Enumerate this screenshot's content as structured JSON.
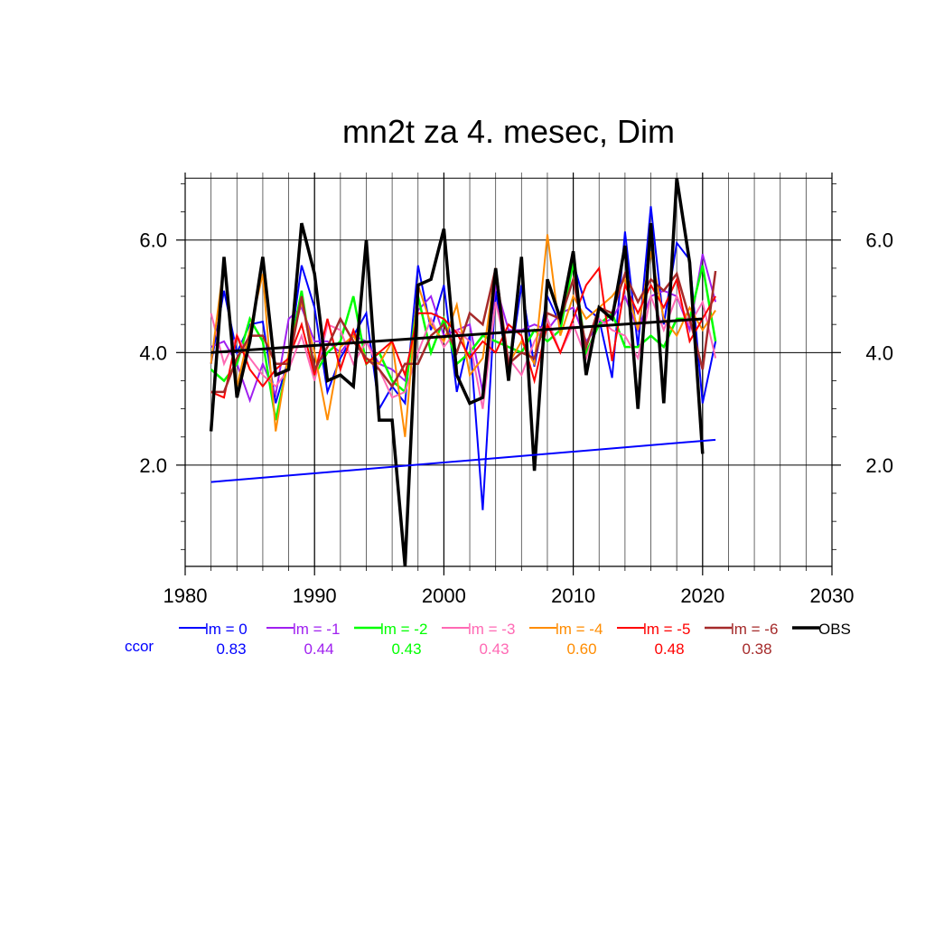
{
  "chart_data": {
    "type": "line",
    "title": "mn2t za 4. mesec, Dim",
    "xlabel": "",
    "ylabel": "",
    "xlim": [
      1980,
      2030
    ],
    "ylim": [
      0.2,
      7.2
    ],
    "x_ticks": [
      1980,
      1990,
      2000,
      2010,
      2020,
      2030
    ],
    "x_tick_labels": [
      "1980",
      "1990",
      "2000",
      "2010",
      "2020",
      "2030"
    ],
    "y_ticks": [
      2.0,
      4.0,
      6.0
    ],
    "y_tick_labels": [
      "2.0",
      "4.0",
      "6.0"
    ],
    "grid": true,
    "legend_placement": "bottom",
    "ccor_label": "ccor",
    "x": [
      1982,
      1983,
      1984,
      1985,
      1986,
      1987,
      1988,
      1989,
      1990,
      1991,
      1992,
      1993,
      1994,
      1995,
      1996,
      1997,
      1998,
      1999,
      2000,
      2001,
      2002,
      2003,
      2004,
      2005,
      2006,
      2007,
      2008,
      2009,
      2010,
      2011,
      2012,
      2013,
      2014,
      2015,
      2016,
      2017,
      2018,
      2019,
      2020,
      2021
    ],
    "series": [
      {
        "name": "lm = 0",
        "ccor": "0.83",
        "color": "#0000ff",
        "width": 2,
        "values": [
          3.8,
          5.1,
          4.0,
          4.5,
          4.55,
          3.1,
          3.9,
          5.55,
          4.8,
          3.3,
          3.9,
          4.3,
          4.7,
          3.0,
          3.4,
          3.1,
          5.55,
          4.4,
          5.2,
          3.3,
          4.3,
          1.2,
          5.1,
          3.6,
          5.2,
          3.75,
          5.0,
          4.5,
          5.6,
          4.8,
          4.6,
          3.55,
          6.15,
          4.1,
          6.6,
          4.5,
          5.95,
          5.65,
          3.1,
          4.2
        ]
      },
      {
        "name": "lm = -1",
        "ccor": "0.44",
        "color": "#a020f0",
        "width": 2,
        "values": [
          4.1,
          4.2,
          3.8,
          3.15,
          3.8,
          3.25,
          4.6,
          4.8,
          4.2,
          4.2,
          4.0,
          4.3,
          4.2,
          3.8,
          3.7,
          3.5,
          4.75,
          5.0,
          4.3,
          4.4,
          4.5,
          3.3,
          5.2,
          4.4,
          4.4,
          4.5,
          4.4,
          4.7,
          4.8,
          4.2,
          4.5,
          4.6,
          5.0,
          4.4,
          5.0,
          5.1,
          5.0,
          4.4,
          5.75,
          4.9
        ]
      },
      {
        "name": "lm = -2",
        "ccor": "0.43",
        "color": "#00ff00",
        "width": 2.5,
        "values": [
          3.7,
          3.5,
          3.8,
          4.6,
          4.2,
          2.8,
          3.9,
          5.1,
          3.6,
          4.0,
          4.2,
          5.0,
          3.8,
          4.0,
          3.5,
          3.3,
          5.0,
          4.0,
          4.6,
          3.8,
          4.0,
          4.3,
          4.2,
          4.1,
          4.0,
          4.4,
          4.2,
          4.4,
          5.6,
          4.0,
          4.5,
          4.7,
          4.1,
          4.1,
          4.3,
          4.1,
          4.6,
          4.6,
          5.55,
          4.2
        ]
      },
      {
        "name": "lm = -3",
        "ccor": "0.43",
        "color": "#ff69b4",
        "width": 2,
        "values": [
          4.7,
          3.8,
          4.3,
          3.9,
          3.6,
          3.4,
          3.7,
          4.3,
          3.5,
          4.5,
          4.4,
          3.8,
          4.2,
          3.7,
          3.2,
          3.3,
          4.0,
          4.6,
          4.1,
          4.4,
          4.2,
          3.0,
          4.9,
          3.9,
          3.6,
          4.2,
          4.6,
          4.0,
          4.5,
          3.9,
          4.6,
          4.4,
          4.3,
          3.9,
          5.0,
          4.4,
          5.0,
          4.5,
          4.9,
          3.9
        ]
      },
      {
        "name": "lm = -4",
        "ccor": "0.60",
        "color": "#ff8c00",
        "width": 2,
        "values": [
          3.8,
          5.6,
          3.4,
          4.4,
          5.4,
          2.6,
          4.0,
          4.9,
          4.0,
          2.8,
          4.1,
          4.3,
          3.9,
          3.8,
          4.2,
          2.5,
          5.2,
          4.5,
          4.2,
          4.85,
          3.6,
          3.9,
          5.5,
          3.8,
          4.2,
          3.8,
          6.1,
          4.3,
          5.0,
          4.6,
          4.8,
          5.0,
          5.3,
          4.4,
          5.8,
          4.6,
          4.3,
          4.8,
          4.4,
          4.75
        ]
      },
      {
        "name": "lm = -5",
        "ccor": "0.48",
        "color": "#ff0000",
        "width": 2,
        "values": [
          3.3,
          3.2,
          4.3,
          3.7,
          3.4,
          3.7,
          3.9,
          4.5,
          3.6,
          4.6,
          3.7,
          4.4,
          3.8,
          4.0,
          4.2,
          3.6,
          4.7,
          4.7,
          4.6,
          4.35,
          3.9,
          4.2,
          4.0,
          4.5,
          4.3,
          3.5,
          4.5,
          4.0,
          4.6,
          5.2,
          5.5,
          3.85,
          5.2,
          4.7,
          5.2,
          4.8,
          5.3,
          4.2,
          4.6,
          5.0
        ]
      },
      {
        "name": "lm = -6",
        "ccor": "0.38",
        "color": "#a52a2a",
        "width": 2.5,
        "values": [
          3.3,
          3.3,
          3.9,
          4.3,
          4.3,
          3.8,
          3.8,
          5.0,
          3.7,
          4.1,
          4.6,
          4.2,
          3.9,
          3.7,
          3.4,
          3.8,
          3.8,
          4.3,
          4.5,
          4.0,
          4.7,
          4.5,
          5.5,
          3.8,
          4.0,
          3.9,
          4.7,
          4.6,
          5.3,
          4.1,
          4.8,
          4.7,
          5.4,
          4.9,
          5.3,
          5.1,
          5.4,
          4.6,
          3.7,
          5.45
        ]
      },
      {
        "name": "OBS",
        "ccor": "",
        "color": "#000000",
        "width": 3.5,
        "values": [
          2.6,
          5.7,
          3.2,
          4.2,
          5.7,
          3.6,
          3.7,
          6.3,
          5.4,
          3.5,
          3.6,
          3.4,
          6.0,
          2.8,
          2.8,
          0.2,
          5.2,
          5.3,
          6.2,
          3.6,
          3.1,
          3.2,
          5.5,
          3.5,
          5.7,
          1.9,
          5.3,
          4.6,
          5.8,
          3.6,
          4.8,
          4.6,
          5.9,
          3.0,
          6.3,
          3.1,
          7.1,
          5.6,
          2.2,
          null
        ]
      }
    ],
    "trend_lines": [
      {
        "of": "OBS",
        "color": "#000000",
        "width": 3,
        "x": [
          1982,
          2020
        ],
        "y": [
          4.0,
          4.6
        ]
      },
      {
        "of": "lm = 0",
        "color": "#0000ff",
        "width": 2,
        "x": [
          1982,
          2021
        ],
        "y": [
          1.7,
          2.45
        ]
      }
    ]
  }
}
